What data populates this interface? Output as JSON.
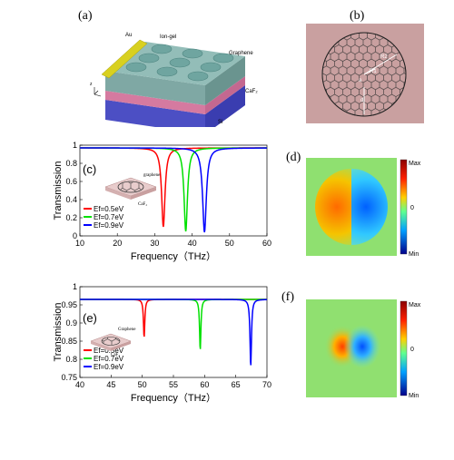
{
  "panels": {
    "a": {
      "label": "(a)",
      "annotations": {
        "au": "Au",
        "ion_gel": "Ion-gel",
        "graphene": "Graphene",
        "caf2": "CaF₂",
        "si": "Si",
        "ax": "z"
      }
    },
    "b": {
      "label": "(b)",
      "annotations": {
        "r2": "R2",
        "r1": "R1",
        "a": "a",
        "d": "d"
      }
    },
    "c": {
      "label": "(c)",
      "inset": {
        "graphene": "graphene",
        "caf2": "CaF₂"
      }
    },
    "d": {
      "label": "(d)",
      "colorbar": {
        "max": "Max",
        "zero": "0",
        "min": "Min"
      }
    },
    "e": {
      "label": "(e)",
      "inset": {
        "graphene": "Graphene",
        "caf2": "CaF₂"
      }
    },
    "f": {
      "label": "(f)",
      "colorbar": {
        "max": "Max",
        "zero": "0",
        "min": "Min"
      }
    }
  },
  "colors": {
    "red": "#ff0000",
    "green": "#00e000",
    "blue": "#0000ff",
    "background_pink": "#c9a0a0"
  },
  "chart_data": [
    {
      "type": "line",
      "panel": "c",
      "xlabel": "Frequency（THz）",
      "ylabel": "Transmission",
      "xlim": [
        10,
        60
      ],
      "ylim": [
        0,
        1
      ],
      "xticks": [
        10,
        20,
        30,
        40,
        50,
        60
      ],
      "yticks": [
        0,
        0.2,
        0.4,
        0.6,
        0.8,
        1
      ],
      "legend_position": "lower-left",
      "baseline": 0.97,
      "series": [
        {
          "name": "Ef=0.5eV",
          "color": "#ff0000",
          "dip_x": 32.3,
          "dip_min": 0.1,
          "width": 0.55
        },
        {
          "name": "Ef=0.7eV",
          "color": "#00e000",
          "dip_x": 38.3,
          "dip_min": 0.05,
          "width": 0.55
        },
        {
          "name": "Ef=0.9eV",
          "color": "#0000ff",
          "dip_x": 43.3,
          "dip_min": 0.04,
          "width": 0.6
        }
      ]
    },
    {
      "type": "line",
      "panel": "e",
      "xlabel": "Frequency（THz）",
      "ylabel": "Transmission",
      "xlim": [
        40,
        70
      ],
      "ylim": [
        0.75,
        1
      ],
      "xticks": [
        40,
        45,
        50,
        55,
        60,
        65,
        70
      ],
      "yticks": [
        0.75,
        0.8,
        0.85,
        0.9,
        0.95,
        1
      ],
      "legend_position": "lower-left",
      "baseline": 0.965,
      "series": [
        {
          "name": "Ef=0.5eV",
          "color": "#ff0000",
          "dip_x": 50.3,
          "dip_min": 0.86,
          "width": 0.13
        },
        {
          "name": "Ef=0.7eV",
          "color": "#00e000",
          "dip_x": 59.3,
          "dip_min": 0.825,
          "width": 0.13
        },
        {
          "name": "Ef=0.9eV",
          "color": "#0000ff",
          "dip_x": 67.4,
          "dip_min": 0.78,
          "width": 0.14
        }
      ]
    }
  ]
}
